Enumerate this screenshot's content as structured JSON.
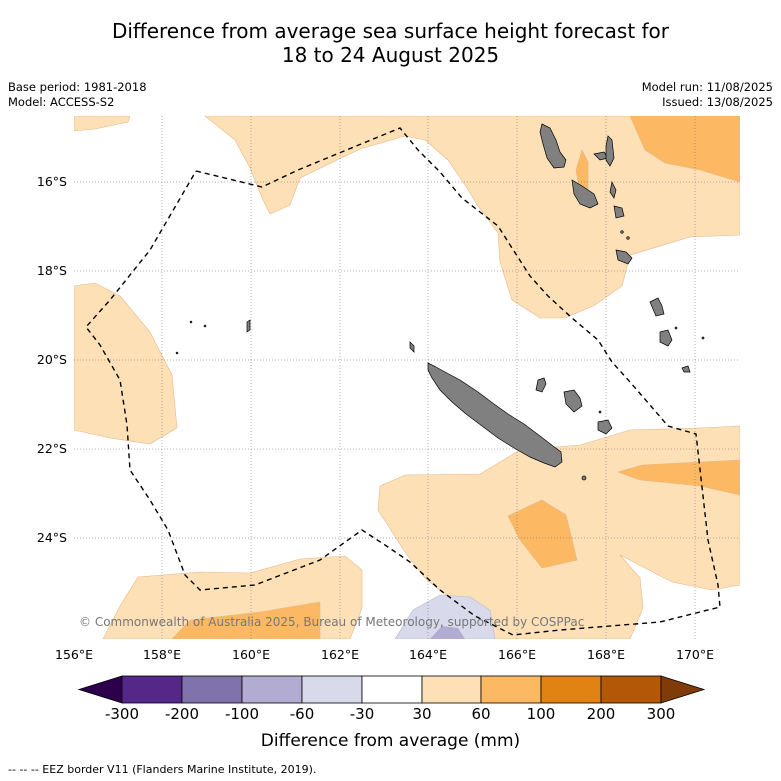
{
  "title": {
    "line1": "Difference from average sea surface height forecast for",
    "line2": "18 to 24 August 2025"
  },
  "meta_left": {
    "base_period": "Base period: 1981-2018",
    "model": "Model: ACCESS-S2"
  },
  "meta_right": {
    "model_run": "Model run: 11/08/2025",
    "issued": "Issued: 13/08/2025"
  },
  "map": {
    "lat_ticks": [
      "16°S",
      "18°S",
      "20°S",
      "22°S",
      "24°S"
    ],
    "lon_ticks": [
      "156°E",
      "158°E",
      "160°E",
      "162°E",
      "164°E",
      "166°E",
      "168°E",
      "170°E"
    ],
    "copyright": "© Commonwealth of Australia 2025, Bureau of Meteorology, supported by COSPPac",
    "land_color": "#808080",
    "eez_style": "dashed black line"
  },
  "colorbar": {
    "title": "Difference from average (mm)",
    "ticks": [
      "-300",
      "-200",
      "-100",
      "-60",
      "-30",
      "30",
      "60",
      "100",
      "200",
      "300"
    ],
    "colors": {
      "below_-300": "#2d004b",
      "-300_-200": "#542788",
      "-200_-100": "#8073ac",
      "-100_-60": "#b2abd2",
      "-60_-30": "#d8daeb",
      "-30_30": "#ffffff",
      "30_60": "#fee0b6",
      "60_100": "#fdb863",
      "100_200": "#e08214",
      "200_300": "#b35806",
      "above_300": "#7f3b08"
    }
  },
  "footnote": "--  --  -- EEZ border V11 (Flanders Marine Institute, 2019)."
}
